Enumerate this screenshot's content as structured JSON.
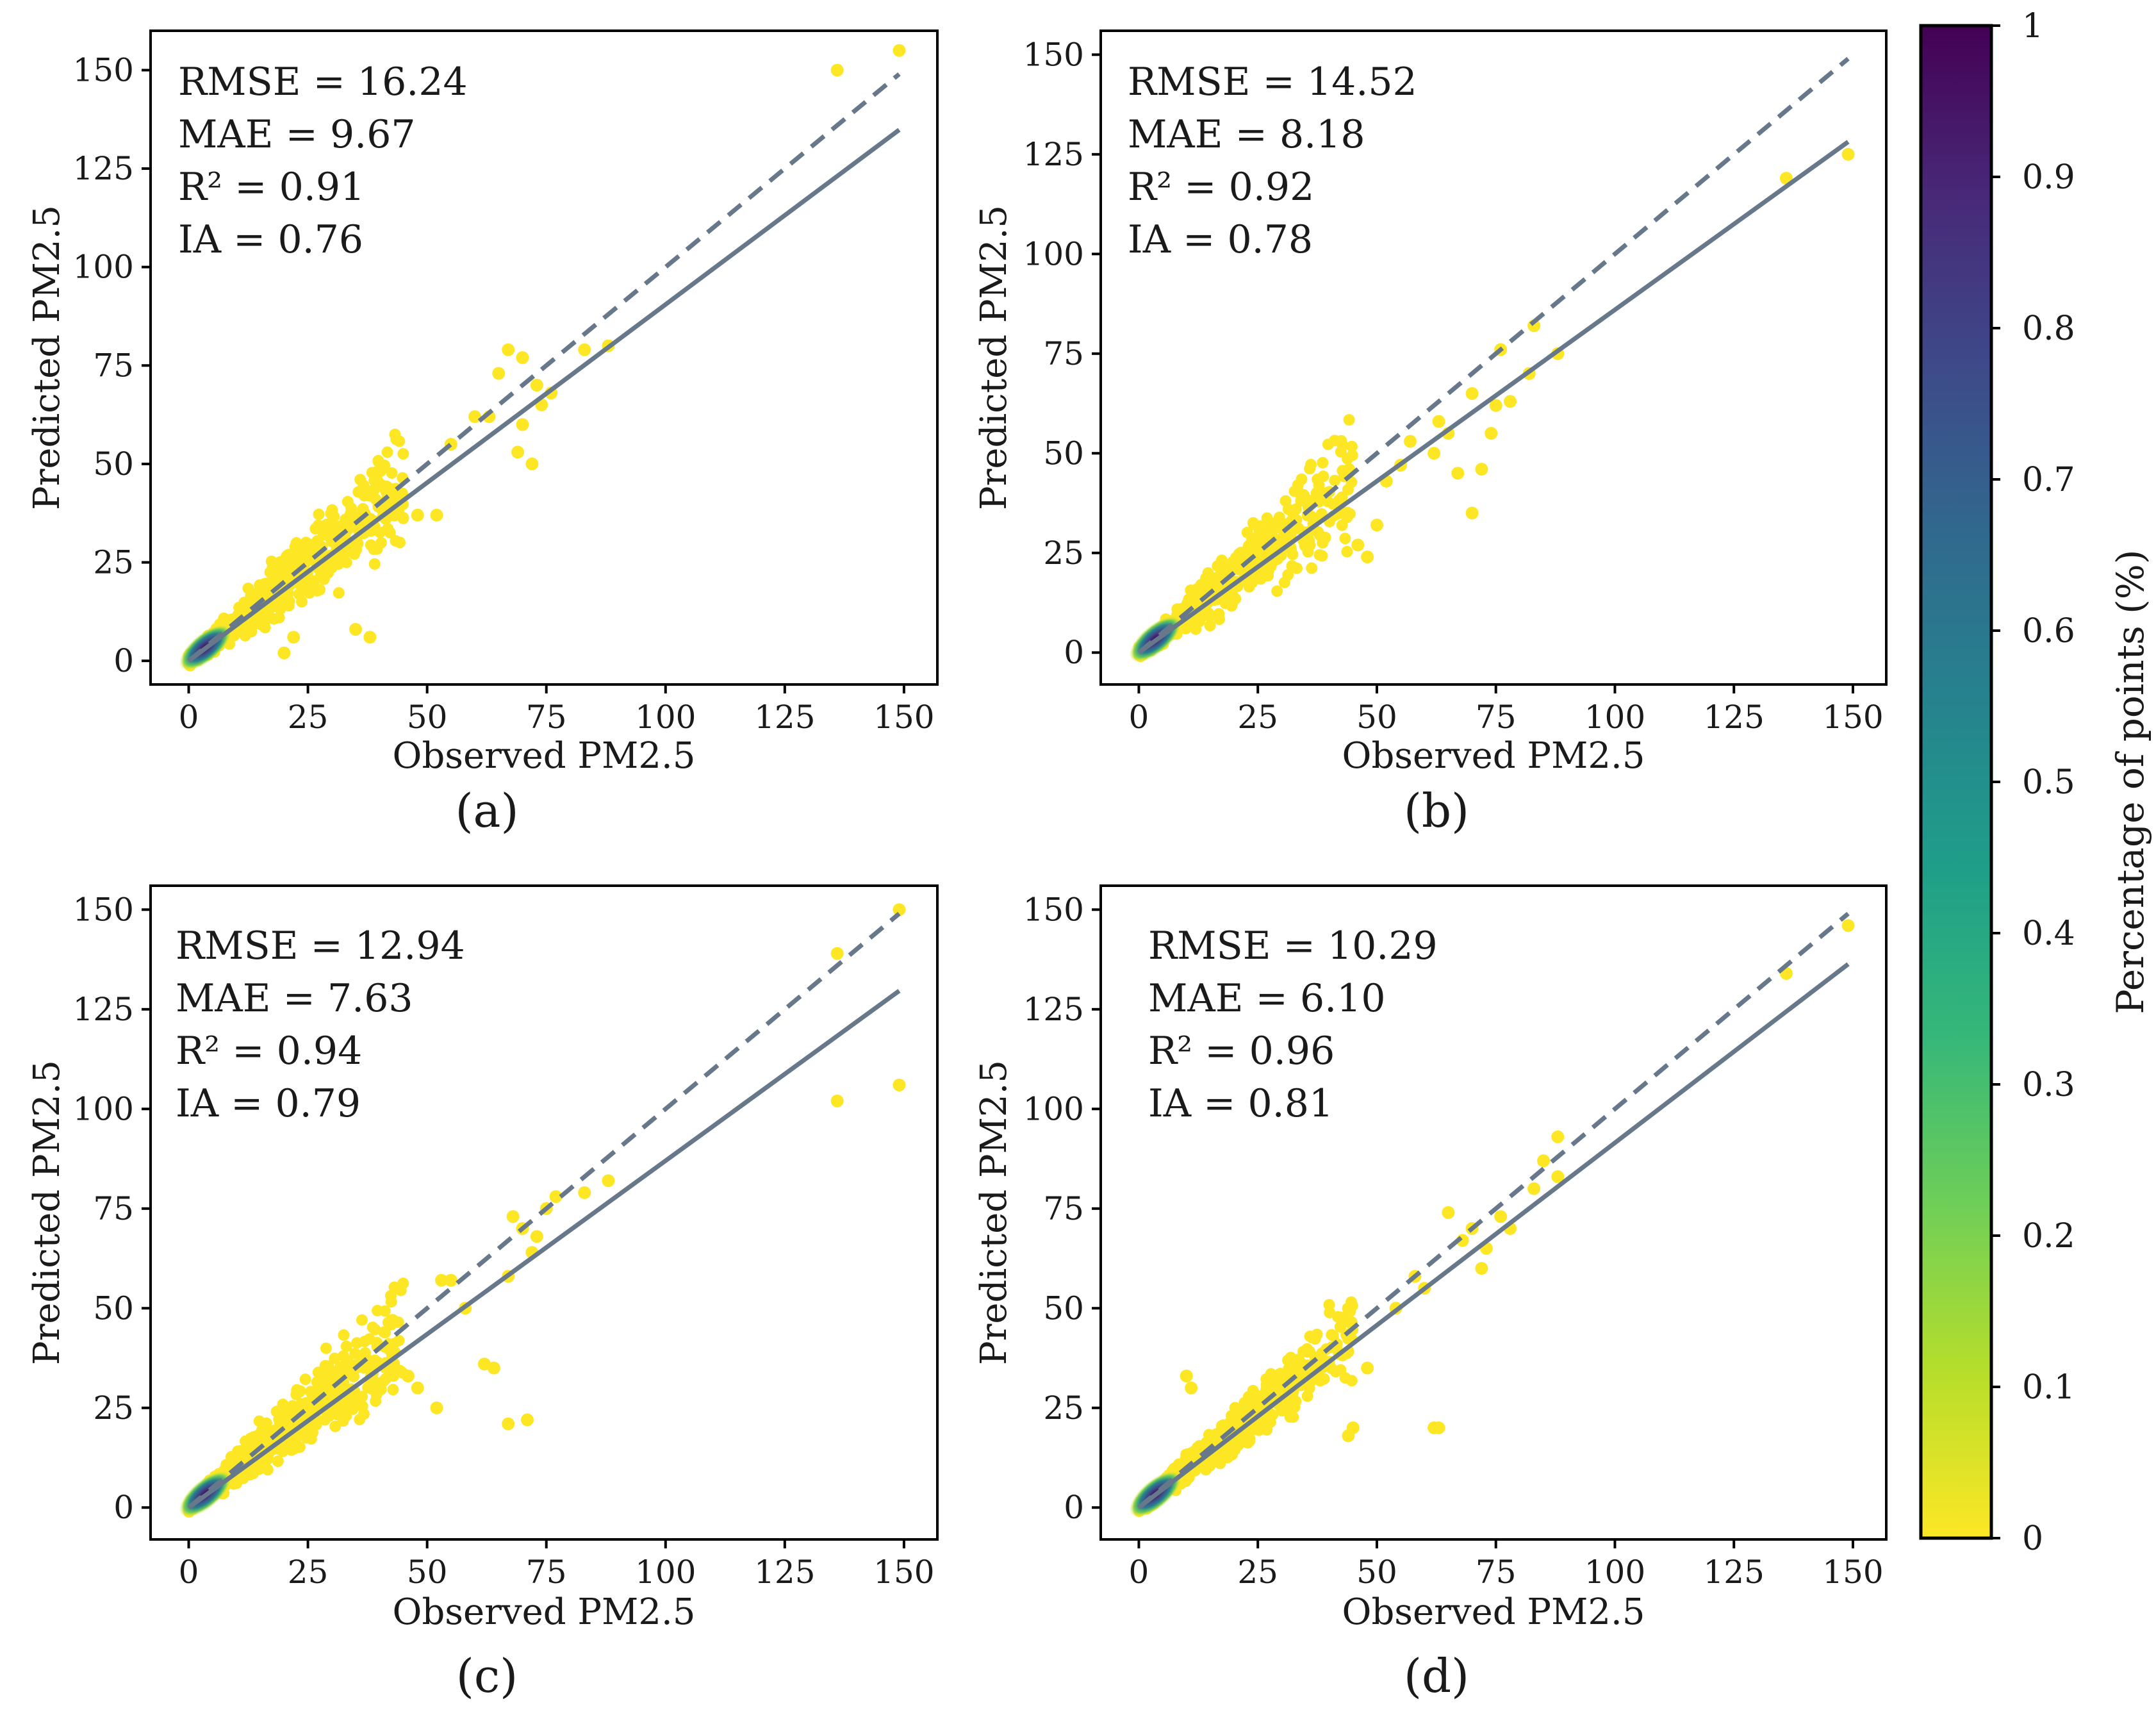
{
  "colorbar": {
    "label": "Percentage of points (%)",
    "ticks": [
      0,
      0.1,
      0.2,
      0.3,
      0.4,
      0.5,
      0.6,
      0.7,
      0.8,
      0.9,
      1
    ],
    "tick_labels": [
      "0",
      "0.1",
      "0.2",
      "0.3",
      "0.4",
      "0.5",
      "0.6",
      "0.7",
      "0.8",
      "0.9",
      "1"
    ],
    "colors": [
      "#fde725",
      "#b5de2b",
      "#6ece58",
      "#35b779",
      "#1f9e89",
      "#26828e",
      "#31688e",
      "#3e4989",
      "#482878",
      "#440154"
    ]
  },
  "style": {
    "point_color": "#fde725",
    "fit_line_color": "#66788a",
    "identity_line_color": "#66788a"
  },
  "chart_data": [
    {
      "type": "scatter",
      "panel": "(a)",
      "xlabel": "Observed PM2.5",
      "ylabel": "Predicted PM2.5",
      "xlim": [
        -8,
        157
      ],
      "ylim": [
        -6,
        160
      ],
      "xticks": [
        0,
        25,
        50,
        75,
        100,
        125,
        150
      ],
      "yticks": [
        0,
        25,
        50,
        75,
        100,
        125,
        150
      ],
      "stats": [
        "RMSE = 16.24",
        "MAE = 9.67",
        "R² = 0.91",
        "IA = 0.76"
      ],
      "fit_line": {
        "slope": 0.905,
        "intercept": 0
      },
      "identity_end": 149,
      "outliers": [
        [
          136,
          150
        ],
        [
          149,
          155
        ],
        [
          83,
          79
        ],
        [
          88,
          80
        ],
        [
          73,
          70
        ],
        [
          67,
          79
        ],
        [
          70,
          77
        ],
        [
          65,
          73
        ],
        [
          70,
          60
        ],
        [
          69,
          53
        ],
        [
          72,
          50
        ],
        [
          74,
          65
        ],
        [
          63,
          62
        ],
        [
          55,
          55
        ],
        [
          48,
          37
        ],
        [
          52,
          37
        ],
        [
          38,
          36
        ],
        [
          30,
          35
        ],
        [
          35,
          8
        ],
        [
          38,
          6
        ],
        [
          20,
          2
        ],
        [
          22,
          6
        ],
        [
          60,
          62
        ],
        [
          76,
          68
        ]
      ],
      "cloud": {
        "seed": 11,
        "n": 600,
        "slope": 0.98,
        "spread": 0.27,
        "xmax": 45
      },
      "dense_max": 7
    },
    {
      "type": "scatter",
      "panel": "(b)",
      "xlabel": "Observed PM2.5",
      "ylabel": "Predicted PM2.5",
      "xlim": [
        -8,
        157
      ],
      "ylim": [
        -8,
        156
      ],
      "xticks": [
        0,
        25,
        50,
        75,
        100,
        125,
        150
      ],
      "yticks": [
        0,
        25,
        50,
        75,
        100,
        125,
        150
      ],
      "stats": [
        "RMSE = 14.52",
        "MAE = 8.18",
        "R² = 0.92",
        "IA = 0.78"
      ],
      "fit_line": {
        "slope": 0.86,
        "intercept": 0
      },
      "identity_end": 149,
      "outliers": [
        [
          136,
          119
        ],
        [
          149,
          125
        ],
        [
          83,
          82
        ],
        [
          88,
          75
        ],
        [
          82,
          70
        ],
        [
          78,
          63
        ],
        [
          70,
          35
        ],
        [
          72,
          46
        ],
        [
          74,
          55
        ],
        [
          67,
          45
        ],
        [
          65,
          55
        ],
        [
          63,
          58
        ],
        [
          62,
          50
        ],
        [
          57,
          53
        ],
        [
          55,
          47
        ],
        [
          50,
          32
        ],
        [
          48,
          24
        ],
        [
          46,
          27
        ],
        [
          52,
          43
        ],
        [
          76,
          76
        ],
        [
          70,
          65
        ],
        [
          75,
          62
        ]
      ],
      "cloud": {
        "seed": 23,
        "n": 600,
        "slope": 0.96,
        "spread": 0.27,
        "xmax": 45
      },
      "dense_max": 7
    },
    {
      "type": "scatter",
      "panel": "(c)",
      "xlabel": "Observed PM2.5",
      "ylabel": "Predicted PM2.5",
      "xlim": [
        -8,
        157
      ],
      "ylim": [
        -8,
        156
      ],
      "xticks": [
        0,
        25,
        50,
        75,
        100,
        125,
        150
      ],
      "yticks": [
        0,
        25,
        50,
        75,
        100,
        125,
        150
      ],
      "stats": [
        "RMSE = 12.94",
        "MAE = 7.63",
        "R² = 0.94",
        "IA = 0.79"
      ],
      "fit_line": {
        "slope": 0.87,
        "intercept": 0
      },
      "identity_end": 149,
      "outliers": [
        [
          136,
          139
        ],
        [
          149,
          150
        ],
        [
          136,
          102
        ],
        [
          149,
          106
        ],
        [
          88,
          82
        ],
        [
          83,
          79
        ],
        [
          77,
          78
        ],
        [
          72,
          64
        ],
        [
          73,
          68
        ],
        [
          67,
          58
        ],
        [
          68,
          73
        ],
        [
          62,
          36
        ],
        [
          64,
          35
        ],
        [
          67,
          21
        ],
        [
          71,
          22
        ],
        [
          58,
          50
        ],
        [
          55,
          57
        ],
        [
          53,
          57
        ],
        [
          48,
          30
        ],
        [
          52,
          25
        ],
        [
          46,
          33
        ],
        [
          42,
          35
        ],
        [
          70,
          70
        ],
        [
          75,
          75
        ]
      ],
      "cloud": {
        "seed": 37,
        "n": 650,
        "slope": 0.97,
        "spread": 0.25,
        "xmax": 45
      },
      "dense_max": 7
    },
    {
      "type": "scatter",
      "panel": "(d)",
      "xlabel": "Observed PM2.5",
      "ylabel": "Predicted PM2.5",
      "xlim": [
        -8,
        157
      ],
      "ylim": [
        -8,
        156
      ],
      "xticks": [
        0,
        25,
        50,
        75,
        100,
        125,
        150
      ],
      "yticks": [
        0,
        25,
        50,
        75,
        100,
        125,
        150
      ],
      "stats": [
        "RMSE = 10.29",
        "MAE = 6.10",
        "R² = 0.96",
        "IA = 0.81"
      ],
      "fit_line": {
        "slope": 0.915,
        "intercept": 0
      },
      "identity_end": 149,
      "outliers": [
        [
          136,
          134
        ],
        [
          149,
          146
        ],
        [
          88,
          93
        ],
        [
          85,
          87
        ],
        [
          88,
          83
        ],
        [
          83,
          80
        ],
        [
          78,
          70
        ],
        [
          73,
          65
        ],
        [
          70,
          70
        ],
        [
          68,
          67
        ],
        [
          65,
          74
        ],
        [
          72,
          60
        ],
        [
          62,
          20
        ],
        [
          63,
          20
        ],
        [
          54,
          50
        ],
        [
          48,
          35
        ],
        [
          44,
          18
        ],
        [
          45,
          20
        ],
        [
          58,
          58
        ],
        [
          10,
          33
        ],
        [
          11,
          30
        ],
        [
          60,
          55
        ],
        [
          76,
          73
        ]
      ],
      "cloud": {
        "seed": 53,
        "n": 600,
        "slope": 0.98,
        "spread": 0.2,
        "xmax": 45
      },
      "dense_max": 7
    }
  ]
}
